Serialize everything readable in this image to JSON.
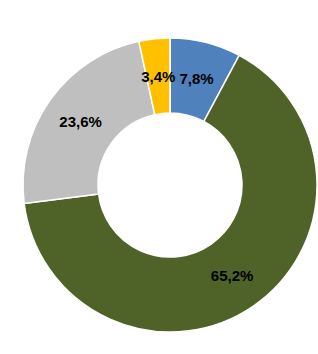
{
  "chart_data": {
    "type": "pie",
    "values": [
      7.8,
      65.2,
      23.6,
      3.4
    ],
    "value_labels": [
      "7,8%",
      "65,2%",
      "23,6%",
      "3,4%"
    ],
    "colors": [
      "#4f81bd",
      "#4f6228",
      "#bfbfbf",
      "#ffc000"
    ],
    "data_labels": true
  }
}
